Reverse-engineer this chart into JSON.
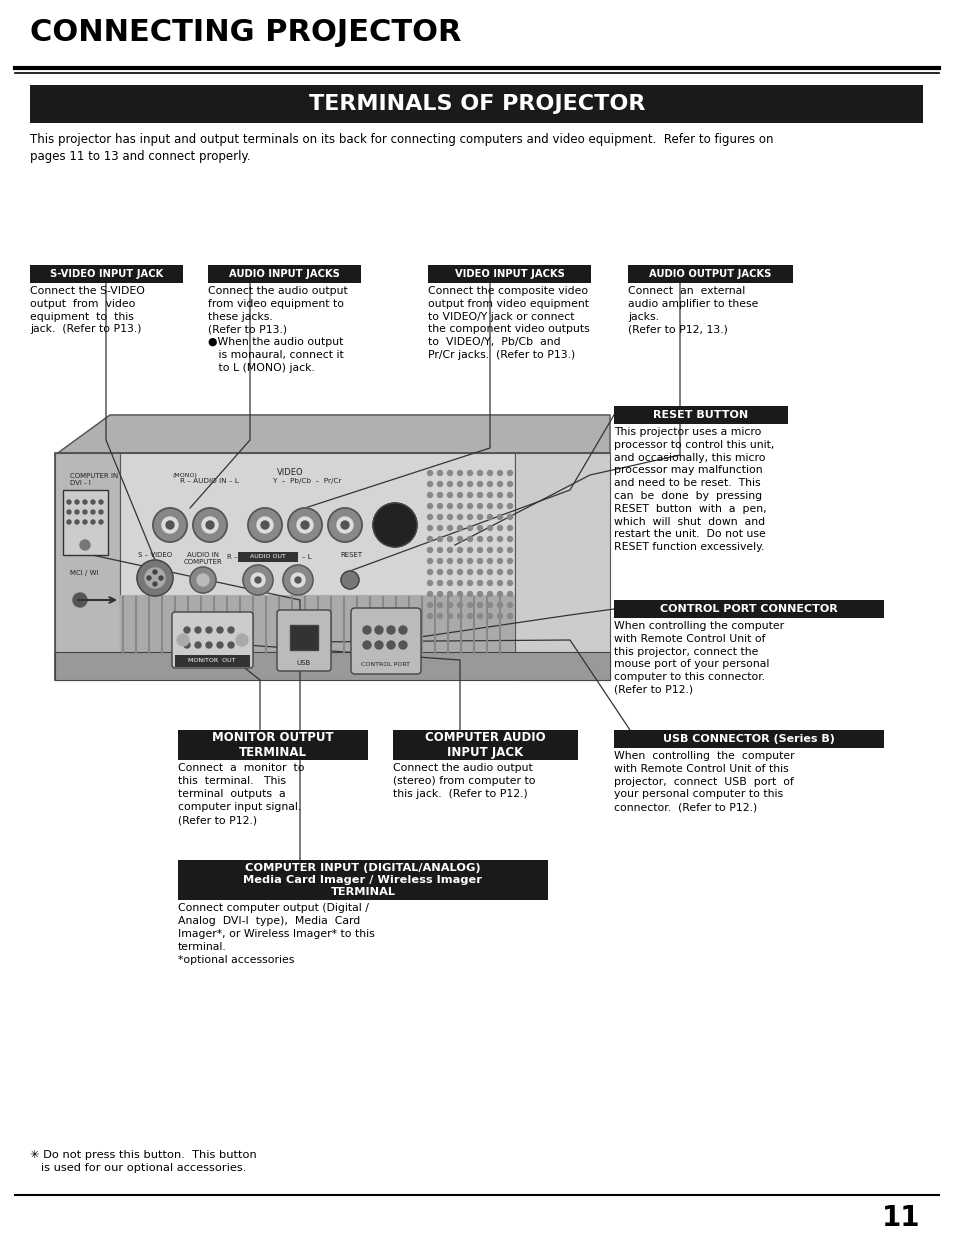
{
  "page_bg": "#ffffff",
  "main_title": "CONNECTING PROJECTOR",
  "section_title": "TERMINALS OF PROJECTOR",
  "intro_text": "This projector has input and output terminals on its back for connecting computers and video equipment.  Refer to figures on\npages 11 to 13 and connect properly.",
  "page_number": "11",
  "label_bg": "#1a1a1a",
  "label_fg": "#ffffff",
  "header_bg": "#1a1a1a",
  "header_fg": "#ffffff",
  "labels": {
    "svideo": "S-VIDEO INPUT JACK",
    "audio_in": "AUDIO INPUT JACKS",
    "video_in": "VIDEO INPUT JACKS",
    "audio_out": "AUDIO OUTPUT JACKS",
    "reset": "RESET BUTTON",
    "control_port": "CONTROL PORT CONNECTOR",
    "monitor_out": "MONITOR OUTPUT\nTERMINAL",
    "comp_audio": "COMPUTER AUDIO\nINPUT JACK",
    "usb": "USB CONNECTOR (Series B)",
    "comp_input": "COMPUTER INPUT (DIGITAL/ANALOG)\nMedia Card Imager / Wireless Imager\nTERMINAL"
  },
  "desc": {
    "svideo": "Connect the S-VIDEO\noutput  from  video\nequipment  to  this\njack.  (Refer to P13.)",
    "audio_in": "Connect the audio output\nfrom video equipment to\nthese jacks.\n(Refer to P13.)\n●When the audio output\n   is monaural, connect it\n   to L (MONO) jack.",
    "video_in": "Connect the composite video\noutput from video equipment\nto VIDEO/Y jack or connect\nthe component video outputs\nto  VIDEO/Y,  Pb/Cb  and\nPr/Cr jacks.  (Refer to P13.)",
    "audio_out": "Connect  an  external\naudio amplifier to these\njacks.\n(Refer to P12, 13.)",
    "reset": "This projector uses a micro\nprocessor to control this unit,\nand occasionally, this micro\nprocessor may malfunction\nand need to be reset.  This\ncan  be  done  by  pressing\nRESET  button  with  a  pen,\nwhich  will  shut  down  and\nrestart the unit.  Do not use\nRESET function excessively.",
    "control_port": "When controlling the computer\nwith Remote Control Unit of\nthis projector, connect the\nmouse port of your personal\ncomputer to this connector.\n(Refer to P12.)",
    "monitor_out": "Connect  a  monitor  to\nthis  terminal.   This\nterminal  outputs  a\ncomputer input signal.\n(Refer to P12.)",
    "comp_audio": "Connect the audio output\n(stereo) from computer to\nthis jack.  (Refer to P12.)",
    "usb": "When  controlling  the  computer\nwith Remote Control Unit of this\nprojector,  connect  USB  port  of\nyour personal computer to this\nconnector.  (Refer to P12.)",
    "comp_input": "Connect computer output (Digital /\nAnalog  DVI-I  type),  Media  Card\nImager*, or Wireless Imager* to this\nterminal.\n*optional accessories"
  },
  "footnote": "✳ Do not press this button.  This button\n   is used for our optional accessories."
}
